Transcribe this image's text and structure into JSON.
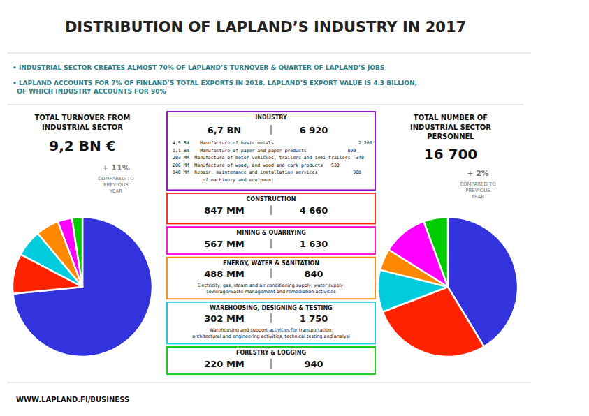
{
  "title": "DISTRIBUTION OF LAPLAND’S INDUSTRY IN 2017",
  "annotations": [
    "• INDUSTRIAL SECTOR CREATES ALMOST 70% OF LAPLAND’S TURNOVER & QUARTER OF LAPLAND’S JOBS",
    "• LAPLAND ACCOUNTS FOR 7% OF FINLAND’S TOTAL EXPORTS IN 2018. LAPLAND’S EXPORT VALUE IS 4.3 BILLION,\n  OF WHICH INDUSTRY ACCOUNTS FOR 90%",
    "WWW.LAPLAND.FI/BUSINESS"
  ],
  "chart_data": [
    {
      "type": "pie",
      "title": "TOTAL TURNOVER FROM",
      "subtitle": "INDUSTRIAL SECTOR",
      "annotations": [
        "9,2 BN €",
        "+ 11%",
        "COMPARED TO\nPREVIOUS\nYEAR"
      ],
      "categories": [
        "INDUSTRY",
        "CONSTRUCTION",
        "MINING & QUARRYING",
        "ENERGY, WATER & SANITATION",
        "WAREHOUSING, DESIGNING & TESTING",
        "FORESTRY & LOGGING"
      ],
      "values": [
        6700,
        847,
        567,
        488,
        302,
        220
      ],
      "value_labels": [
        "6,7 BN",
        "847 MM",
        "567 MM",
        "488 MM",
        "302 MM",
        "220 MM"
      ],
      "colors": [
        "#3333dd",
        "#ff2200",
        "#00ccdd",
        "#ff8800",
        "#ff00ff",
        "#00cc00"
      ],
      "category_colors": [
        "#8800cc",
        "#ff2200",
        "#ff00cc",
        "#ff8800",
        "#00ccdd",
        "#00cc00"
      ],
      "category_notes": [
        "4,5 BN    Manufacture of basic metals                               2 200\n1,1 BN    Manufacture of paper and paper products               890\n203 MM  Manufacture of motor vehicles, trailers and semi-trailers  340\n206 MM  Manufacture of wood, and wood and cork products   530\n148 MM  Repair, maintenance and installation services             900\n           of machinery and equipment",
        null,
        null,
        "Electricity, gas, steam and air conditioning supply, water supply,\nsewerage/waste management and remediation activities",
        "Warehousing and support activities for transportation;\narchitectural and engineering activities; technical testing and analysi",
        null
      ]
    },
    {
      "type": "pie",
      "title": "TOTAL NUMBER OF",
      "subtitle": "INDUSTRIAL SECTOR\nPERSONNEL",
      "annotations": [
        "16 700",
        "+ 2%",
        "COMPARED TO\nPREVIOUS\nYEAR"
      ],
      "values": [
        6920,
        4660,
        1630,
        840,
        1750,
        940
      ],
      "value_labels": [
        "6 920",
        "4 660",
        "1 630",
        "840",
        "1 750",
        "940"
      ],
      "colors": [
        "#3333dd",
        "#ff2200",
        "#00ccdd",
        "#ff8800",
        "#ff00ff",
        "#00cc00"
      ]
    }
  ]
}
